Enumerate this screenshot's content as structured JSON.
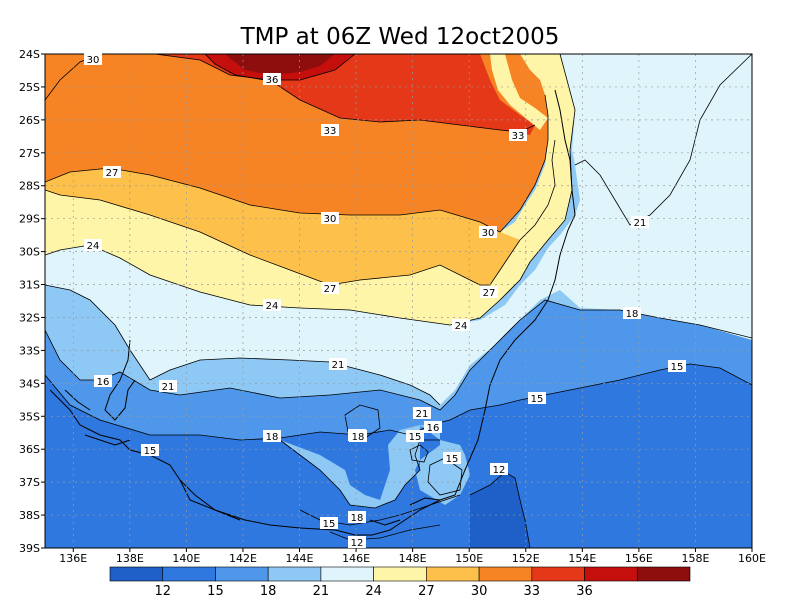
{
  "title": "TMP at 06Z Wed 12oct2005",
  "lat_labels": [
    "24S",
    "25S",
    "26S",
    "27S",
    "28S",
    "29S",
    "30S",
    "31S",
    "32S",
    "33S",
    "34S",
    "35S",
    "36S",
    "37S",
    "38S",
    "39S"
  ],
  "lon_labels": [
    "136E",
    "138E",
    "140E",
    "142E",
    "144E",
    "146E",
    "148E",
    "150E",
    "152E",
    "154E",
    "156E",
    "158E",
    "160E"
  ],
  "colorbar": {
    "colors": [
      "#1f5fc8",
      "#2f78df",
      "#4f97ea",
      "#8ec8f4",
      "#dff5fb",
      "#fff5a8",
      "#fdc04a",
      "#f78424",
      "#e53818",
      "#c40f0d",
      "#8e0d0d"
    ],
    "labels": [
      "12",
      "15",
      "18",
      "21",
      "24",
      "27",
      "30",
      "33",
      "36"
    ]
  },
  "contour_labels": [
    {
      "text": "30"
    },
    {
      "text": "36"
    },
    {
      "text": "33"
    },
    {
      "text": "33"
    },
    {
      "text": "27"
    },
    {
      "text": "30"
    },
    {
      "text": "30"
    },
    {
      "text": "24"
    },
    {
      "text": "27"
    },
    {
      "text": "27"
    },
    {
      "text": "24"
    },
    {
      "text": "24"
    },
    {
      "text": "21"
    },
    {
      "text": "21"
    },
    {
      "text": "18"
    },
    {
      "text": "21"
    },
    {
      "text": "18"
    },
    {
      "text": "15"
    },
    {
      "text": "16"
    },
    {
      "text": "15"
    },
    {
      "text": "18"
    },
    {
      "text": "15"
    },
    {
      "text": "15"
    },
    {
      "text": "12"
    },
    {
      "text": "15"
    },
    {
      "text": "18"
    },
    {
      "text": "12"
    },
    {
      "text": "18"
    },
    {
      "text": "15"
    },
    {
      "text": "16"
    },
    {
      "text": "21"
    }
  ]
}
